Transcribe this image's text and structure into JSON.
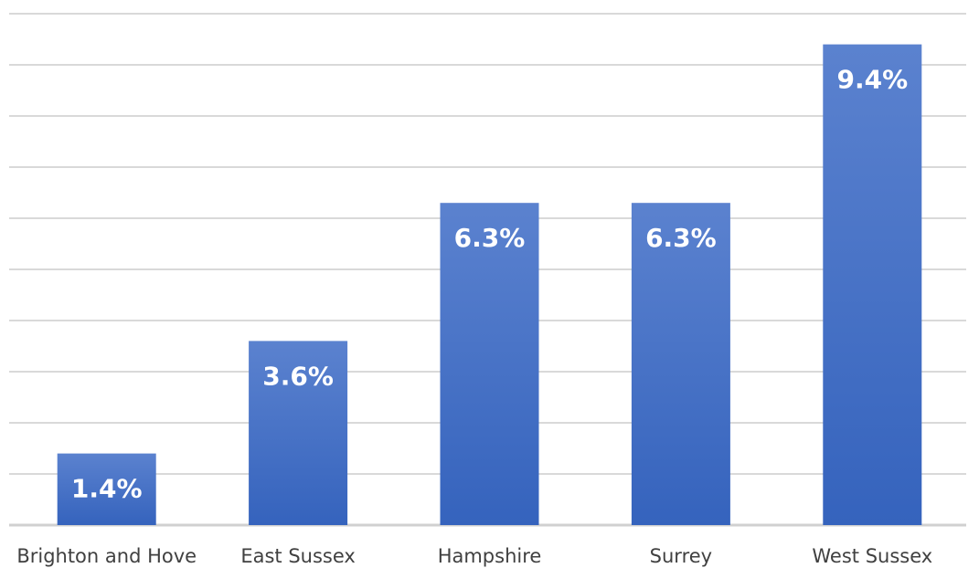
{
  "chart_data": {
    "type": "bar",
    "title": "",
    "xlabel": "",
    "ylabel": "",
    "categories": [
      "Brighton and Hove",
      "East Sussex",
      "Hampshire",
      "Surrey",
      "West Sussex"
    ],
    "values": [
      1.4,
      3.6,
      6.3,
      6.3,
      9.4
    ],
    "value_labels": [
      "1.4%",
      "3.6%",
      "6.3%",
      "6.3%",
      "9.4%"
    ],
    "ylim": [
      0,
      10
    ],
    "grid": true,
    "legend": "none",
    "bar_color_top": "#5b82cf",
    "bar_color_bottom": "#3563bd"
  }
}
